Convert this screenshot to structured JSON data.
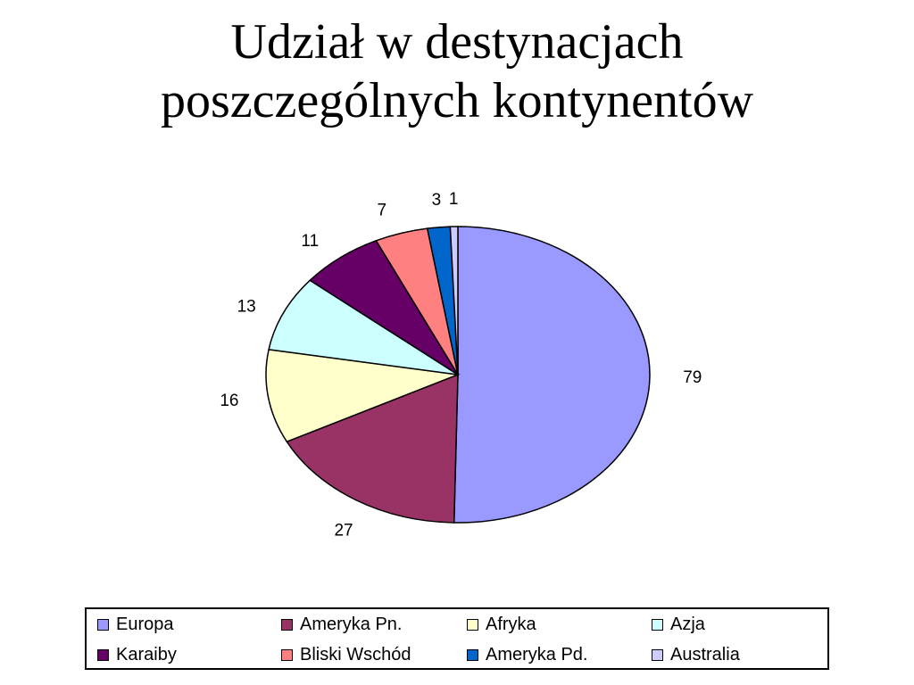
{
  "chart_data": {
    "type": "pie",
    "title": "Udział w destynacjach poszczególnych kontynentów",
    "title_lines": [
      "Udział w destynacjach",
      "poszczególnych kontynentów"
    ],
    "categories": [
      "Europa",
      "Ameryka Pn.",
      "Afryka",
      "Azja",
      "Karaiby",
      "Bliski Wschód",
      "Ameryka Pd.",
      "Australia"
    ],
    "values": [
      79,
      27,
      16,
      13,
      11,
      7,
      3,
      1
    ],
    "colors": [
      "#9999ff",
      "#993366",
      "#ffffcc",
      "#ccffff",
      "#660066",
      "#ff8080",
      "#0066cc",
      "#ccccff"
    ],
    "legend_position": "bottom",
    "data_labels": true
  }
}
